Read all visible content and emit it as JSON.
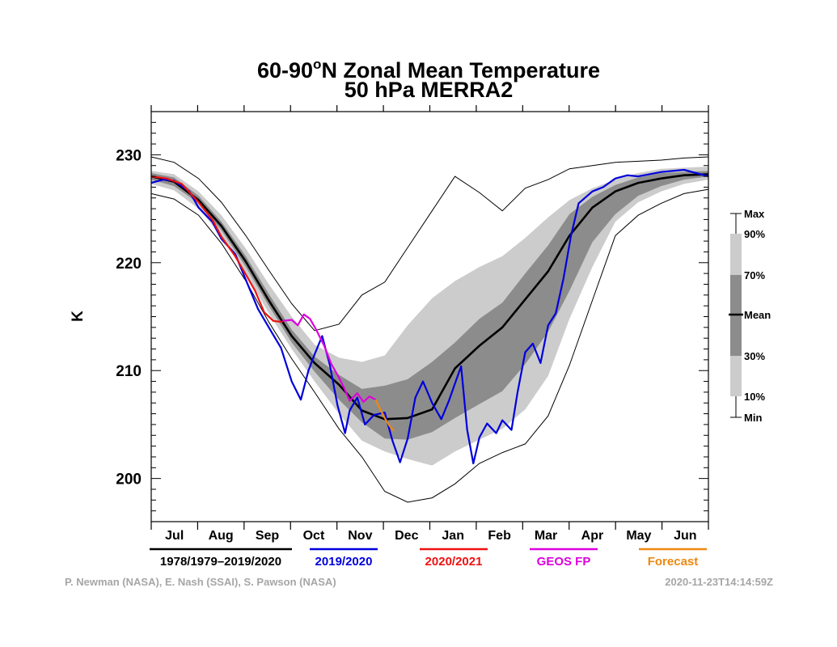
{
  "chart_data": {
    "type": "area",
    "title": "60-90°N Zonal Mean Temperature",
    "title_parts": {
      "pre": "60-90",
      "sup": "o",
      "post": "N Zonal Mean Temperature"
    },
    "subtitle": "50 hPa   MERRA2",
    "ylabel": "K",
    "ylim": [
      196,
      234
    ],
    "yticks": [
      200,
      210,
      220,
      230
    ],
    "x_months": [
      "Jul",
      "Aug",
      "Sep",
      "Oct",
      "Nov",
      "Dec",
      "Jan",
      "Feb",
      "Mar",
      "Apr",
      "May",
      "Jun"
    ],
    "x_unit": "day_of_year_from_jul1",
    "xlim": [
      0,
      365
    ],
    "band_legend": {
      "labels": [
        "Max",
        "90%",
        "70%",
        "Mean",
        "30%",
        "10%",
        "Min"
      ],
      "colors": {
        "band_10_90": "#cccccc",
        "band_30_70": "#8c8c8c",
        "band_10_30_and_70_90": "#b3b3b3"
      }
    },
    "climatology": {
      "x": [
        0,
        15,
        31,
        46,
        62,
        77,
        92,
        107,
        123,
        138,
        153,
        168,
        184,
        199,
        215,
        230,
        245,
        260,
        274,
        289,
        304,
        319,
        334,
        349,
        365
      ],
      "min": [
        226.4,
        225.9,
        224.4,
        221.8,
        218.3,
        214.5,
        211.1,
        208.0,
        204.6,
        202.0,
        198.8,
        197.8,
        198.2,
        199.5,
        201.4,
        202.4,
        203.2,
        205.8,
        210.5,
        216.5,
        222.5,
        224.4,
        225.5,
        226.4,
        226.8
      ],
      "p10": [
        227.3,
        226.7,
        225.0,
        222.5,
        219.0,
        215.3,
        212.0,
        209.0,
        206.0,
        203.5,
        202.5,
        201.8,
        201.2,
        202.5,
        203.6,
        204.6,
        206.4,
        209.5,
        214.8,
        219.6,
        223.8,
        225.6,
        226.6,
        227.3,
        227.7
      ],
      "p30": [
        227.7,
        227.1,
        225.5,
        223.0,
        219.6,
        216.0,
        212.6,
        209.9,
        207.3,
        205.2,
        203.7,
        203.6,
        204.3,
        205.6,
        206.9,
        208.1,
        210.6,
        213.6,
        217.4,
        221.9,
        224.5,
        226.2,
        227.1,
        227.7,
        228.0
      ],
      "mean": [
        228.0,
        227.5,
        225.8,
        223.4,
        220.1,
        216.5,
        213.2,
        210.7,
        208.7,
        206.3,
        205.5,
        205.6,
        206.4,
        210.2,
        212.3,
        214.0,
        216.6,
        219.2,
        222.5,
        225.1,
        226.6,
        227.4,
        227.8,
        228.1,
        228.2
      ],
      "p70": [
        228.3,
        227.9,
        226.2,
        223.8,
        220.6,
        217.1,
        213.8,
        211.3,
        209.6,
        208.3,
        208.6,
        209.2,
        210.8,
        212.6,
        214.8,
        216.3,
        219.0,
        221.6,
        224.5,
        226.1,
        227.2,
        227.9,
        228.3,
        228.4,
        228.5
      ],
      "p90": [
        228.5,
        228.2,
        226.6,
        224.4,
        221.3,
        218.0,
        215.0,
        212.4,
        211.2,
        210.8,
        211.4,
        214.2,
        216.7,
        218.3,
        219.6,
        220.6,
        222.3,
        224.2,
        225.8,
        226.9,
        227.7,
        228.3,
        228.7,
        228.8,
        228.9
      ],
      "max": [
        229.8,
        229.3,
        227.8,
        225.6,
        222.5,
        219.3,
        216.2,
        213.7,
        214.3,
        217.0,
        218.2,
        221.4,
        224.8,
        228.0,
        226.5,
        224.8,
        226.9,
        227.7,
        228.7,
        229.0,
        229.3,
        229.4,
        229.5,
        229.7,
        229.8
      ]
    },
    "series": [
      {
        "name": "1978/1979–2019/2020",
        "key": "mean",
        "color": "#000000"
      },
      {
        "name": "2019/2020",
        "color": "#0000dd",
        "x": [
          0,
          8,
          15,
          25,
          31,
          40,
          46,
          55,
          62,
          70,
          77,
          85,
          92,
          98,
          103,
          107,
          112,
          117,
          122,
          127,
          130,
          135,
          140,
          146,
          153,
          158,
          163,
          168,
          173,
          178,
          184,
          190,
          195,
          199,
          203,
          207,
          211,
          215,
          220,
          226,
          230,
          236,
          240,
          245,
          250,
          255,
          260,
          265,
          270,
          275,
          280,
          289,
          296,
          304,
          312,
          319,
          334,
          349,
          357,
          365
        ],
        "y": [
          227.4,
          227.7,
          227.6,
          226.6,
          225.1,
          223.8,
          222.2,
          220.8,
          218.4,
          215.7,
          214.0,
          212.1,
          209.0,
          207.3,
          210.0,
          211.5,
          213.2,
          210.5,
          206.8,
          204.2,
          206.3,
          207.5,
          205.0,
          205.9,
          206.1,
          203.5,
          201.5,
          203.7,
          207.5,
          209.0,
          207.0,
          205.5,
          207.2,
          208.8,
          210.4,
          204.5,
          201.4,
          203.8,
          205.1,
          204.2,
          205.4,
          204.5,
          208.0,
          211.7,
          212.5,
          210.7,
          214.2,
          215.3,
          218.5,
          222.5,
          225.5,
          226.6,
          227.0,
          227.8,
          228.1,
          228.0,
          228.4,
          228.6,
          228.3,
          228.0
        ]
      },
      {
        "name": "2020/2021",
        "color": "#ee1111",
        "x": [
          0,
          10,
          20,
          31,
          40,
          46,
          55,
          62,
          68,
          74,
          80,
          86
        ],
        "y": [
          228.0,
          227.8,
          227.3,
          225.6,
          224.0,
          222.4,
          220.6,
          218.9,
          217.4,
          215.4,
          214.6,
          214.5
        ]
      },
      {
        "name": "GEOS FP",
        "color": "#dd00dd",
        "x": [
          86,
          92,
          96,
          100,
          104,
          108,
          113,
          118,
          122,
          126,
          130,
          135,
          139,
          143,
          147
        ],
        "y": [
          214.6,
          214.7,
          214.2,
          215.2,
          214.8,
          213.8,
          212.4,
          210.6,
          209.6,
          208.5,
          207.2,
          207.9,
          207.1,
          207.6,
          207.3
        ]
      },
      {
        "name": "Forecast",
        "color": "#ee8811",
        "x": [
          147,
          150,
          153,
          156,
          159
        ],
        "y": [
          207.3,
          206.4,
          205.6,
          204.9,
          204.4
        ]
      }
    ]
  },
  "credits": {
    "authors": "P. Newman (NASA), E. Nash (SSAI), S. Pawson (NASA)",
    "timestamp": "2020-11-23T14:14:59Z"
  }
}
